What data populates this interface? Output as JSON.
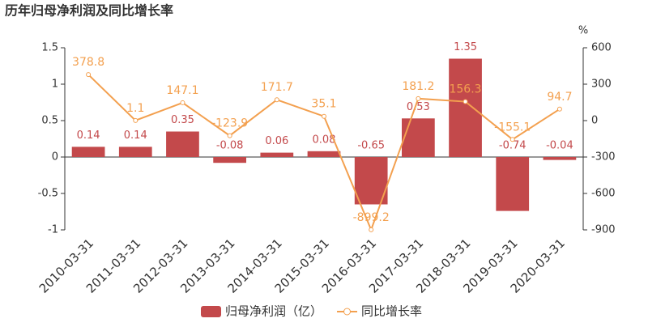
{
  "chart_data": {
    "type": "bar-line",
    "title": "历年归母净利润及同比增长率",
    "categories": [
      "2010-03-31",
      "2011-03-31",
      "2012-03-31",
      "2013-03-31",
      "2014-03-31",
      "2015-03-31",
      "2016-03-31",
      "2017-03-31",
      "2018-03-31",
      "2019-03-31",
      "2020-03-31"
    ],
    "series": [
      {
        "name": "归母净利润（亿）",
        "type": "bar",
        "color": "#c3494b",
        "values": [
          0.14,
          0.14,
          0.35,
          -0.08,
          0.06,
          0.08,
          -0.65,
          0.53,
          1.35,
          -0.74,
          -0.04
        ]
      },
      {
        "name": "同比增长率",
        "type": "line",
        "axis": "y2",
        "color": "#f3a04f",
        "values": [
          378.8,
          1.1,
          147.1,
          -123.9,
          171.7,
          35.1,
          -899.2,
          181.2,
          156.3,
          -155.1,
          94.7
        ]
      }
    ],
    "ylim": [
      -1,
      1.5
    ],
    "yticks": [
      -1,
      -0.5,
      0,
      0.5,
      1,
      1.5
    ],
    "y2lim": [
      -900,
      600
    ],
    "y2ticks": [
      -900,
      -600,
      -300,
      0,
      300,
      600
    ],
    "y2_unit": "%"
  }
}
